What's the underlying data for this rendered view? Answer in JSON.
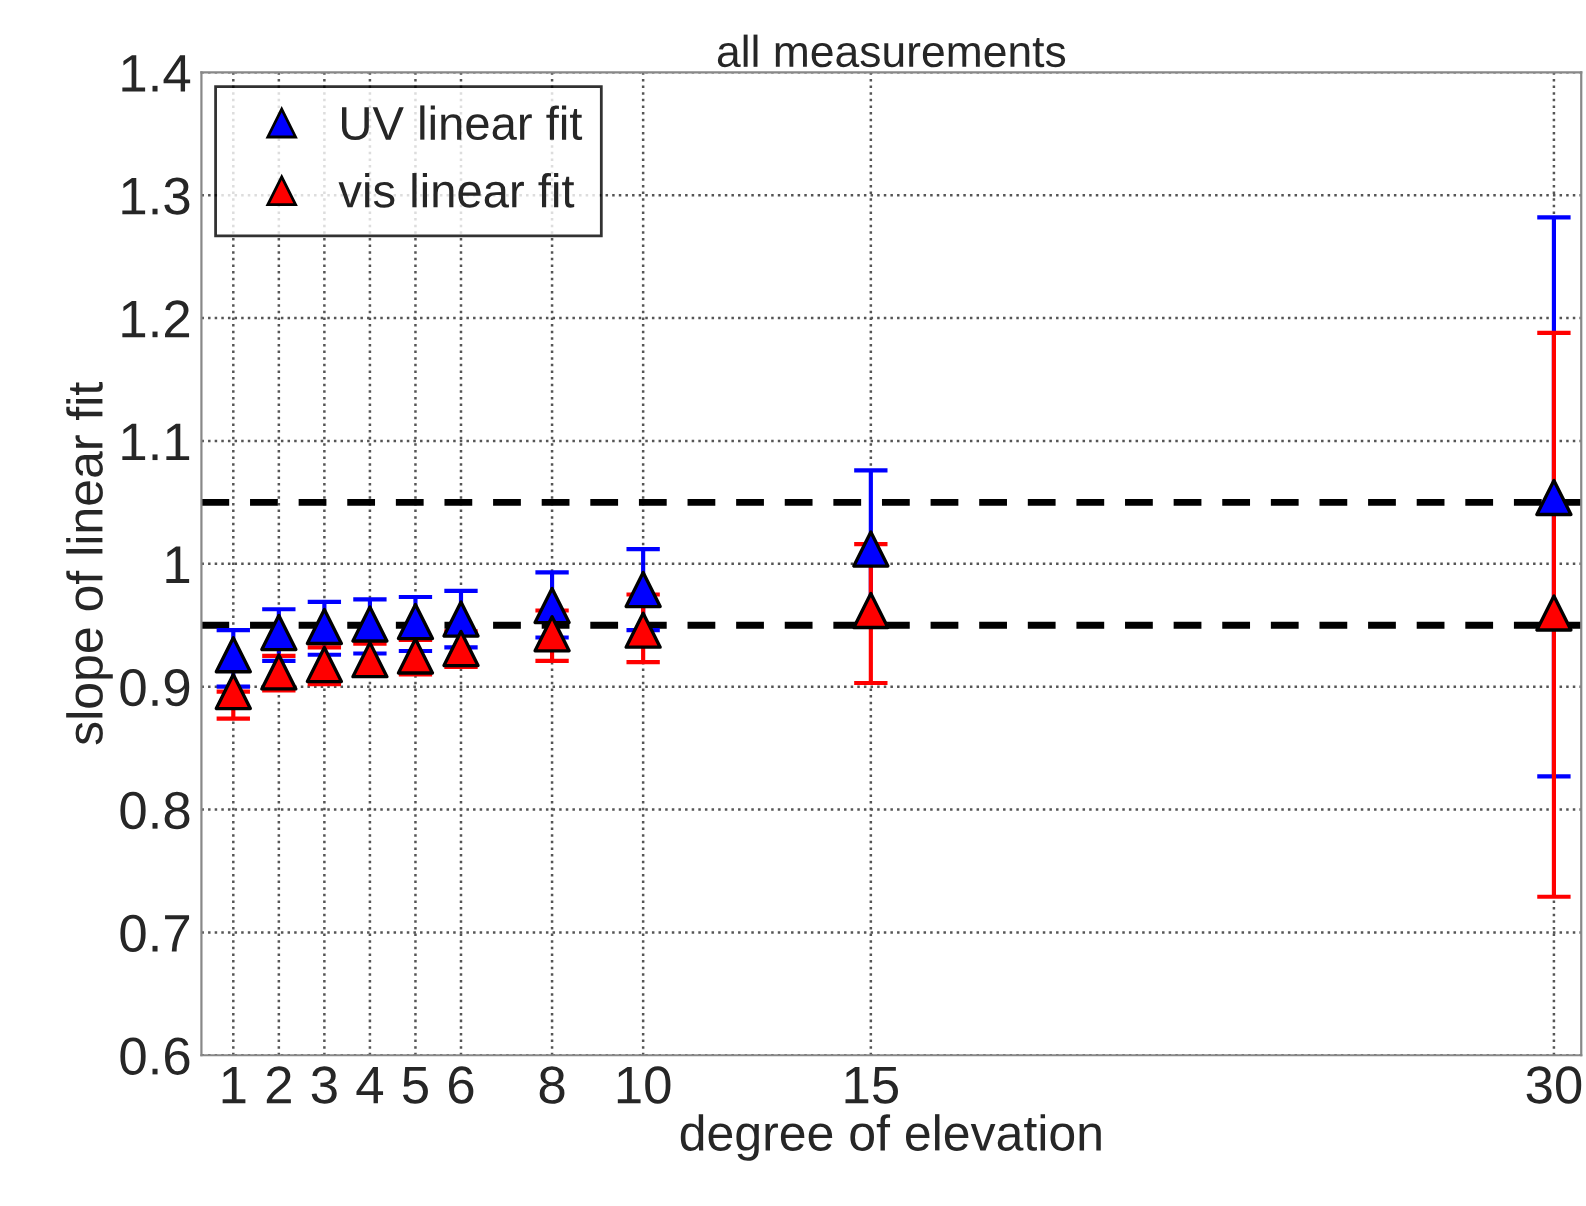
{
  "chart_data": {
    "type": "scatter",
    "title": "all measurements",
    "xlabel": "degree of elevation",
    "ylabel": "slope of linear fit",
    "x": [
      1,
      2,
      3,
      4,
      5,
      6,
      8,
      10,
      15,
      30
    ],
    "series": [
      {
        "name": "UV linear fit",
        "color": "#0000ff",
        "values": [
          0.926,
          0.944,
          0.949,
          0.951,
          0.953,
          0.955,
          0.966,
          0.979,
          1.012,
          1.054
        ],
        "errors": [
          [
            0.9,
            0.946
          ],
          [
            0.921,
            0.963
          ],
          [
            0.926,
            0.969
          ],
          [
            0.927,
            0.971
          ],
          [
            0.929,
            0.973
          ],
          [
            0.932,
            0.978
          ],
          [
            0.94,
            0.993
          ],
          [
            0.946,
            1.012
          ],
          [
            0.95,
            1.076
          ],
          [
            0.827,
            1.282
          ]
        ]
      },
      {
        "name": "vis linear fit",
        "color": "#ff0000",
        "values": [
          0.896,
          0.912,
          0.918,
          0.922,
          0.925,
          0.931,
          0.943,
          0.946,
          0.962,
          0.96
        ],
        "errors": [
          [
            0.874,
            0.896
          ],
          [
            0.897,
            0.925
          ],
          [
            0.902,
            0.932
          ],
          [
            0.909,
            0.935
          ],
          [
            0.91,
            0.938
          ],
          [
            0.916,
            0.945
          ],
          [
            0.921,
            0.962
          ],
          [
            0.92,
            0.975
          ],
          [
            0.903,
            1.016
          ],
          [
            0.729,
            1.188
          ]
        ]
      }
    ],
    "xlim": [
      0.3,
      30.6
    ],
    "xticks": [
      1,
      2,
      3,
      4,
      5,
      6,
      8,
      10,
      15,
      30
    ],
    "ylim": [
      0.6,
      1.4
    ],
    "yticks": [
      0.6,
      0.7,
      0.8,
      0.9,
      1,
      1.1,
      1.2,
      1.3,
      1.4
    ],
    "ref_lines": [
      {
        "axis": "y",
        "value": 1.05,
        "color": "#000000",
        "line_style": "dashed"
      },
      {
        "axis": "y",
        "value": 0.95,
        "color": "#000000",
        "line_style": "dashed"
      }
    ],
    "grid": true,
    "legend": "top left",
    "marker": "triangle"
  }
}
